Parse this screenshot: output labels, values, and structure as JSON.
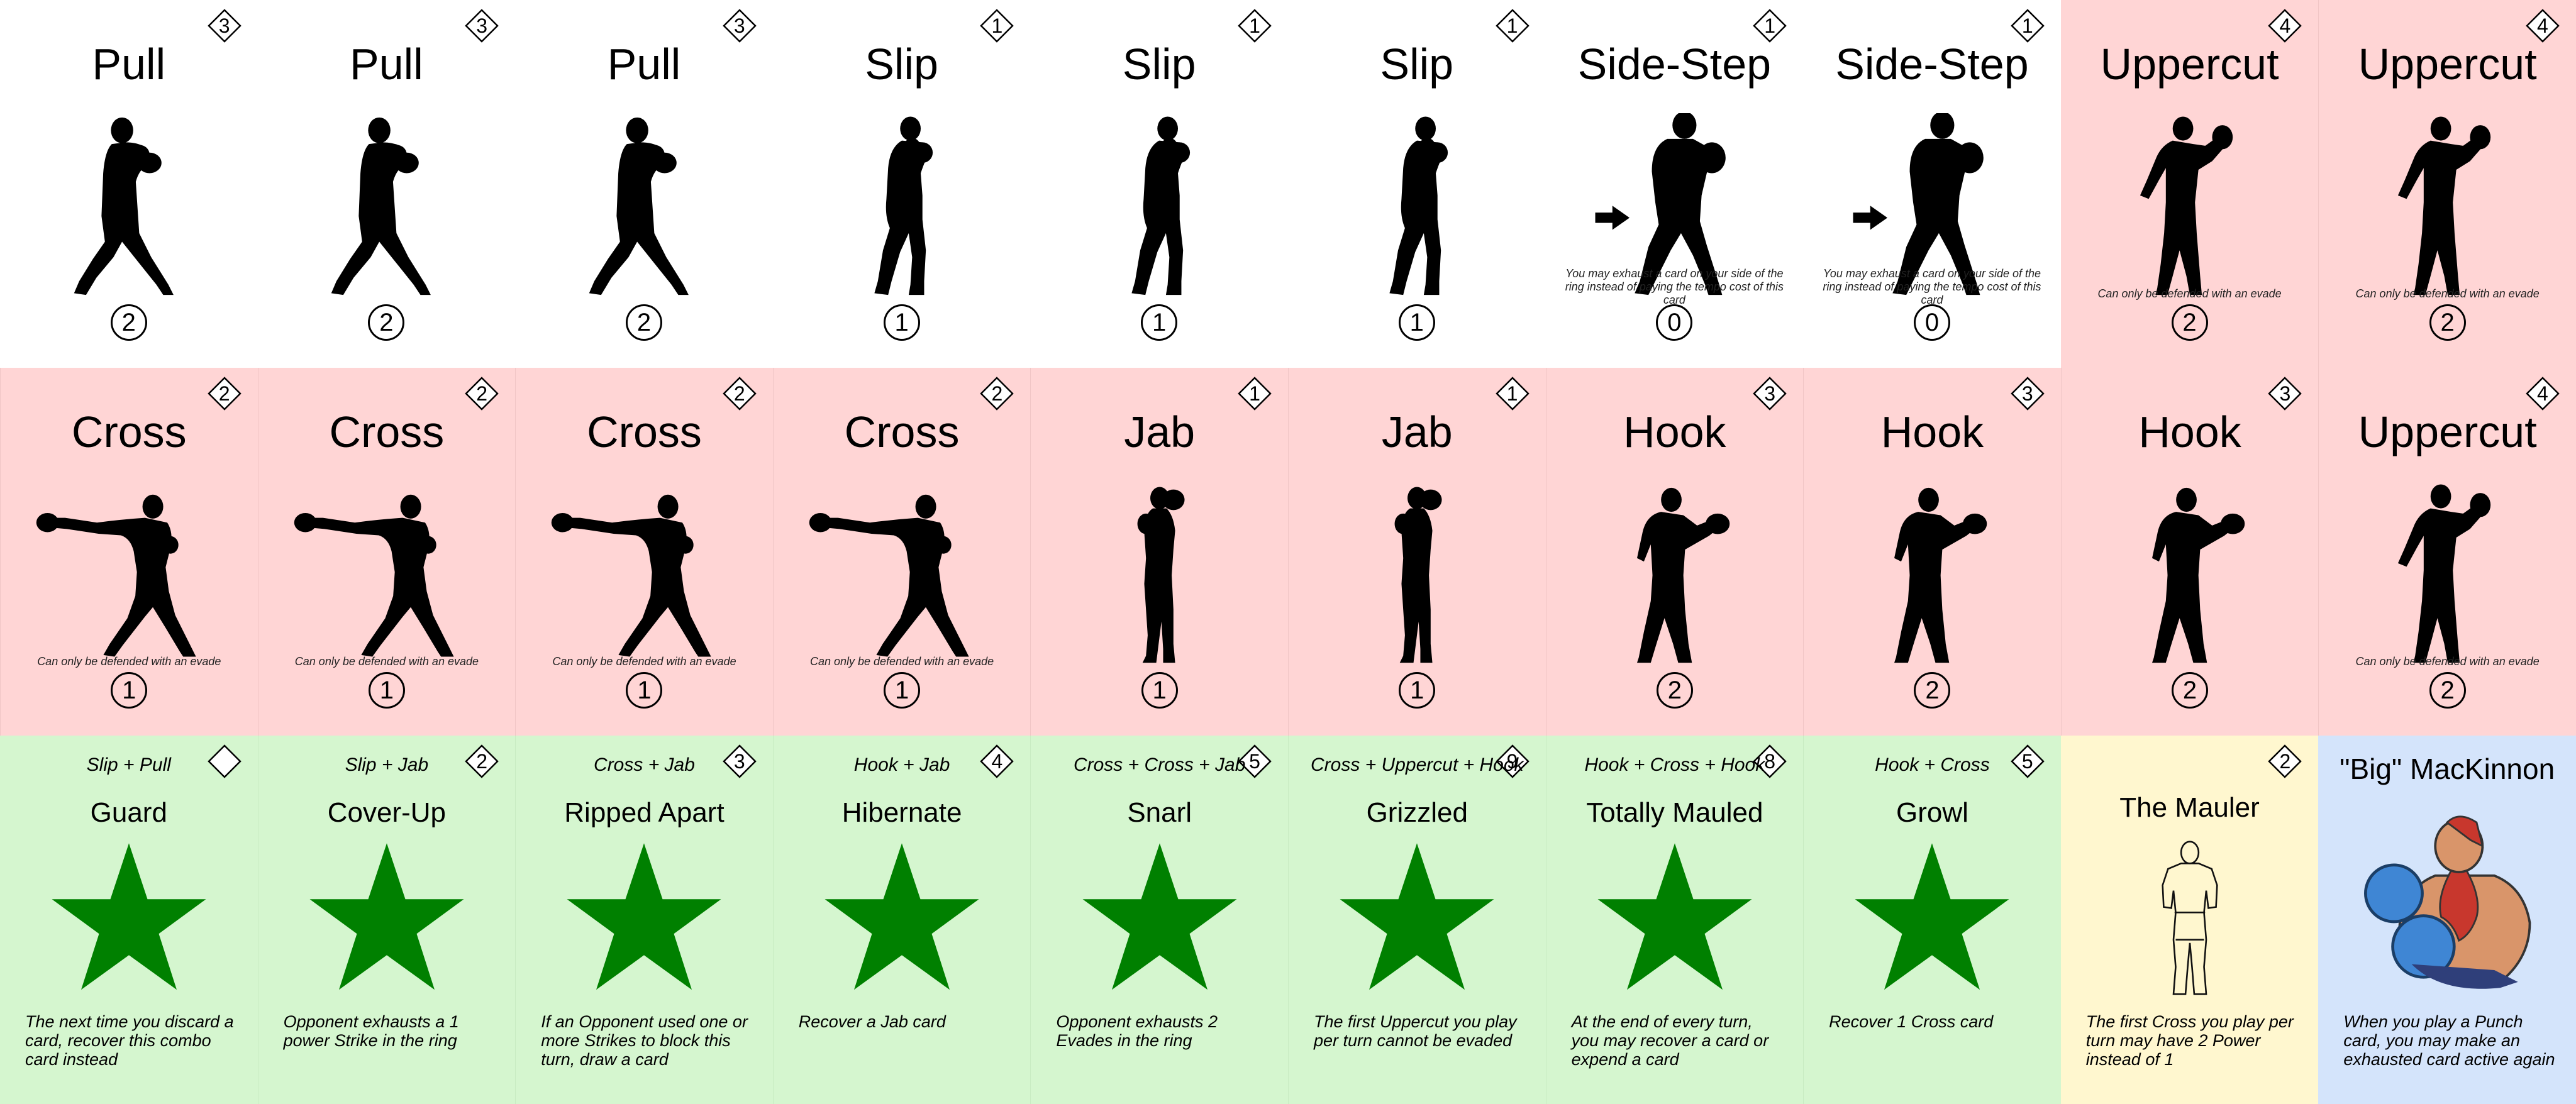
{
  "rows": [
    [
      {
        "name": "Pull",
        "cost": "3",
        "power": "2",
        "color": "white",
        "figure": "pull-silhouette-icon"
      },
      {
        "name": "Pull",
        "cost": "3",
        "power": "2",
        "color": "white",
        "figure": "pull-silhouette-icon"
      },
      {
        "name": "Pull",
        "cost": "3",
        "power": "2",
        "color": "white",
        "figure": "pull-silhouette-icon"
      },
      {
        "name": "Slip",
        "cost": "1",
        "power": "1",
        "color": "white",
        "figure": "slip-silhouette-icon"
      },
      {
        "name": "Slip",
        "cost": "1",
        "power": "1",
        "color": "white",
        "figure": "slip-silhouette-icon"
      },
      {
        "name": "Slip",
        "cost": "1",
        "power": "1",
        "color": "white",
        "figure": "slip-silhouette-icon"
      },
      {
        "name": "Side-Step",
        "cost": "1",
        "power": "0",
        "color": "white",
        "figure": "side-step-silhouette-icon",
        "note": "You may exhaust a card on your side of the ring instead of paying the tempo cost of this card"
      },
      {
        "name": "Side-Step",
        "cost": "1",
        "power": "0",
        "color": "white",
        "figure": "side-step-silhouette-icon",
        "note": "You may exhaust a card on your side of the ring instead of paying the tempo cost of this card"
      },
      {
        "name": "Uppercut",
        "cost": "4",
        "power": "2",
        "color": "red",
        "figure": "uppercut-silhouette-icon",
        "note": "Can only be defended with an evade"
      },
      {
        "name": "Uppercut",
        "cost": "4",
        "power": "2",
        "color": "red",
        "figure": "uppercut-silhouette-icon",
        "note": "Can only be defended with an evade"
      }
    ],
    [
      {
        "name": "Cross",
        "cost": "2",
        "power": "1",
        "color": "red",
        "figure": "cross-silhouette-icon",
        "note": "Can only be defended with an evade"
      },
      {
        "name": "Cross",
        "cost": "2",
        "power": "1",
        "color": "red",
        "figure": "cross-silhouette-icon",
        "note": "Can only be defended with an evade"
      },
      {
        "name": "Cross",
        "cost": "2",
        "power": "1",
        "color": "red",
        "figure": "cross-silhouette-icon",
        "note": "Can only be defended with an evade"
      },
      {
        "name": "Cross",
        "cost": "2",
        "power": "1",
        "color": "red",
        "figure": "cross-silhouette-icon",
        "note": "Can only be defended with an evade"
      },
      {
        "name": "Jab",
        "cost": "1",
        "power": "1",
        "color": "red",
        "figure": "jab-silhouette-icon"
      },
      {
        "name": "Jab",
        "cost": "1",
        "power": "1",
        "color": "red",
        "figure": "jab-silhouette-icon"
      },
      {
        "name": "Hook",
        "cost": "3",
        "power": "2",
        "color": "red",
        "figure": "hook-silhouette-icon"
      },
      {
        "name": "Hook",
        "cost": "3",
        "power": "2",
        "color": "red",
        "figure": "hook-silhouette-icon"
      },
      {
        "name": "Hook",
        "cost": "3",
        "power": "2",
        "color": "red",
        "figure": "hook-silhouette-icon"
      },
      {
        "name": "Uppercut",
        "cost": "4",
        "power": "2",
        "color": "red",
        "figure": "uppercut-silhouette-icon",
        "note": "Can only be defended with an evade"
      }
    ],
    [
      {
        "recipe": "Slip + Pull",
        "name": "Guard",
        "cost": "",
        "text": "The next time you discard a card, recover this combo card instead",
        "color": "green"
      },
      {
        "recipe": "Slip + Jab",
        "name": "Cover-Up",
        "cost": "2",
        "text": "Opponent exhausts a 1 power Strike in the ring",
        "color": "green"
      },
      {
        "recipe": "Cross + Jab",
        "name": "Ripped Apart",
        "cost": "3",
        "text": "If an Opponent used one or more Strikes to block this turn, draw a card",
        "color": "green"
      },
      {
        "recipe": "Hook + Jab",
        "name": "Hibernate",
        "cost": "4",
        "text": "Recover a Jab card",
        "color": "green"
      },
      {
        "recipe": "Cross + Cross + Jab",
        "name": "Snarl",
        "cost": "5",
        "text": "Opponent exhausts 2 Evades in the ring",
        "color": "green"
      },
      {
        "recipe": "Cross + Uppercut + Hook",
        "name": "Grizzled",
        "cost": "9",
        "text": "The first Uppercut you play per turn cannot be evaded",
        "color": "green"
      },
      {
        "recipe": "Hook + Cross + Hook",
        "name": "Totally Mauled",
        "cost": "8",
        "text": "At the end of every turn, you may recover a card or expend a card",
        "color": "green"
      },
      {
        "recipe": "Hook + Cross",
        "name": "Growl",
        "cost": "5",
        "text": "Recover 1 Cross card",
        "color": "green"
      }
    ]
  ],
  "mauler": {
    "name": "The Mauler",
    "cost": "2",
    "text": "The first Cross you play per turn may have 2 Power instead of 1"
  },
  "character": {
    "name": "\"Big\" MacKinnon",
    "text": "When you play a Punch card, you may make an exhausted card active again"
  },
  "colors": {
    "white": "#ffffff",
    "red": "#ffd5d5",
    "green": "#d5f6cf",
    "yellow": "#fff7cf",
    "blue": "#d4e4fb",
    "star": "#008000"
  }
}
